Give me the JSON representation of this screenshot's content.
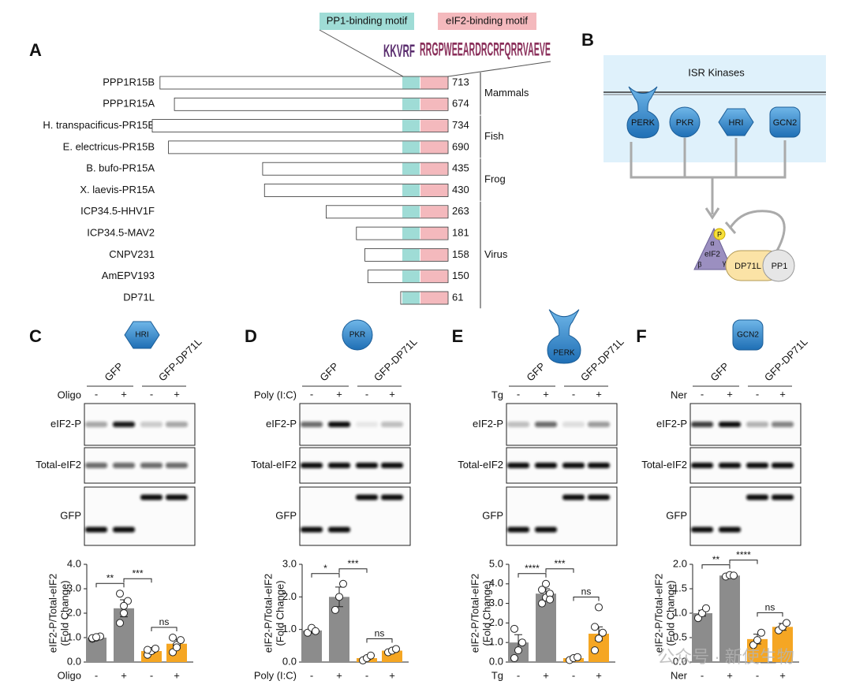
{
  "panel_labels": [
    "A",
    "B",
    "C",
    "D",
    "E",
    "F"
  ],
  "panel_a": {
    "motifs": [
      "PP1-binding motif",
      "eIF2-binding motif"
    ],
    "logos": [
      "KKVRF",
      "RRGPWEEARDRCRFQRRVAEVE"
    ],
    "groups": [
      {
        "label": "Mammals",
        "proteins": [
          {
            "name": "PPP1R15B",
            "length": 713
          },
          {
            "name": "PPP1R15A",
            "length": 674
          }
        ]
      },
      {
        "label": "Fish",
        "proteins": [
          {
            "name": "H. transpacificus-PR15B",
            "length": 734
          },
          {
            "name": "E. electricus-PR15B",
            "length": 690
          }
        ]
      },
      {
        "label": "Frog",
        "proteins": [
          {
            "name": "B. bufo-PR15A",
            "length": 435
          },
          {
            "name": "X. laevis-PR15A",
            "length": 430
          }
        ]
      },
      {
        "label": "Virus",
        "proteins": [
          {
            "name": "ICP34.5-HHV1F",
            "length": 263
          },
          {
            "name": "ICP34.5-MAV2",
            "length": 181
          },
          {
            "name": "CNPV231",
            "length": 158
          },
          {
            "name": "AmEPV193",
            "length": 150
          },
          {
            "name": "DP71L",
            "length": 61
          }
        ]
      }
    ]
  },
  "panel_b": {
    "title": "ISR Kinases",
    "kinases": [
      "PERK",
      "PKR",
      "HRI",
      "GCN2"
    ],
    "eif2": "eIF2",
    "subunits": [
      "α",
      "β",
      "γ"
    ],
    "phospho": "P",
    "partners": [
      "DP71L",
      "PP1"
    ]
  },
  "chart_data": [
    {
      "type": "bar",
      "kinase": "HRI",
      "columns": [
        "GFP",
        "GFP-DP71L"
      ],
      "treatment": "Oligo",
      "blot_rows": [
        "eIF2-P",
        "Total-eIF2",
        "GFP"
      ],
      "categories": [
        "-",
        "+",
        "-",
        "+"
      ],
      "y_label": [
        "eIF2-P/Total-eIF2",
        "(Fold Change)"
      ],
      "ylim": [
        0,
        4
      ],
      "yticks": [
        {
          "value": 0,
          "label": "0.0"
        },
        {
          "value": 1,
          "label": "1.0"
        },
        {
          "value": 2,
          "label": "2.0"
        },
        {
          "value": 3,
          "label": "3.0"
        },
        {
          "value": 4,
          "label": "4.0"
        }
      ],
      "values": [
        1.0,
        2.2,
        0.45,
        0.75
      ],
      "errors": [
        0.05,
        0.35,
        0.08,
        0.18
      ],
      "points": [
        [
          0.95,
          1.0,
          1.05,
          0.98,
          1.02
        ],
        [
          1.6,
          2.0,
          2.5,
          2.8,
          2.3
        ],
        [
          0.3,
          0.45,
          0.55,
          0.5
        ],
        [
          0.4,
          0.7,
          0.9,
          1.0,
          0.6
        ]
      ],
      "colors": [
        "#8c8c8c",
        "#8c8c8c",
        "#f5a623",
        "#f5a623"
      ],
      "annotations": [
        "**",
        "***",
        "ns"
      ]
    },
    {
      "type": "bar",
      "kinase": "PKR",
      "columns": [
        "GFP",
        "GFP-DP71L"
      ],
      "treatment": "Poly (I:C)",
      "blot_rows": [
        "eIF2-P",
        "Total-eIF2",
        "GFP"
      ],
      "categories": [
        "-",
        "+",
        "-",
        "+"
      ],
      "y_label": [
        "eIF2-P/Total-eIF2",
        "(Fold Change)"
      ],
      "ylim": [
        0,
        3
      ],
      "yticks": [
        {
          "value": 0,
          "label": "0.0"
        },
        {
          "value": 1,
          "label": "1.0"
        },
        {
          "value": 2,
          "label": "2.0"
        },
        {
          "value": 3,
          "label": "3.0"
        }
      ],
      "values": [
        0.97,
        2.0,
        0.12,
        0.35
      ],
      "errors": [
        0.08,
        0.3,
        0.05,
        0.05
      ],
      "points": [
        [
          0.9,
          1.05,
          0.95
        ],
        [
          1.6,
          2.0,
          2.4
        ],
        [
          0.05,
          0.12,
          0.2
        ],
        [
          0.3,
          0.35,
          0.4
        ]
      ],
      "colors": [
        "#8c8c8c",
        "#8c8c8c",
        "#f5a623",
        "#f5a623"
      ],
      "annotations": [
        "*",
        "***",
        "ns"
      ]
    },
    {
      "type": "bar",
      "kinase": "PERK",
      "columns": [
        "GFP",
        "GFP-DP71L"
      ],
      "treatment": "Tg",
      "blot_rows": [
        "eIF2-P",
        "Total-eIF2",
        "GFP"
      ],
      "categories": [
        "-",
        "+",
        "-",
        "+"
      ],
      "y_label": [
        "eIF2-P/Total-eIF2",
        "(Fold Change)"
      ],
      "ylim": [
        0,
        5
      ],
      "yticks": [
        {
          "value": 0,
          "label": "0.0"
        },
        {
          "value": 1,
          "label": "1.0"
        },
        {
          "value": 2,
          "label": "2.0"
        },
        {
          "value": 3,
          "label": "3.0"
        },
        {
          "value": 4,
          "label": "4.0"
        },
        {
          "value": 5,
          "label": "5.0"
        }
      ],
      "values": [
        1.0,
        3.5,
        0.2,
        1.45
      ],
      "errors": [
        0.4,
        0.25,
        0.05,
        0.35
      ],
      "points": [
        [
          0.2,
          0.6,
          1.0,
          1.7
        ],
        [
          3.0,
          3.3,
          3.5,
          3.7,
          4.0,
          3.2
        ],
        [
          0.1,
          0.2,
          0.25
        ],
        [
          0.6,
          1.2,
          1.5,
          1.8,
          2.8
        ]
      ],
      "colors": [
        "#8c8c8c",
        "#8c8c8c",
        "#f5a623",
        "#f5a623"
      ],
      "annotations": [
        "****",
        "***",
        "ns"
      ]
    },
    {
      "type": "bar",
      "kinase": "GCN2",
      "columns": [
        "GFP",
        "GFP-DP71L"
      ],
      "treatment": "Ner",
      "blot_rows": [
        "eIF2-P",
        "Total-eIF2",
        "GFP"
      ],
      "categories": [
        "-",
        "+",
        "-",
        "+"
      ],
      "y_label": [
        "eIF2-P/Total-eIF2",
        "(Fold Change)"
      ],
      "ylim": [
        0,
        2
      ],
      "yticks": [
        {
          "value": 0,
          "label": "0.0"
        },
        {
          "value": 0.5,
          "label": "0.5"
        },
        {
          "value": 1,
          "label": "1.0"
        },
        {
          "value": 1.5,
          "label": "1.5"
        },
        {
          "value": 2,
          "label": "2.0"
        }
      ],
      "values": [
        1.0,
        1.77,
        0.47,
        0.72
      ],
      "errors": [
        0.06,
        0.02,
        0.1,
        0.07
      ],
      "points": [
        [
          0.9,
          1.0,
          1.1
        ],
        [
          1.75,
          1.78,
          1.77
        ],
        [
          0.35,
          0.45,
          0.6
        ],
        [
          0.65,
          0.72,
          0.8
        ]
      ],
      "colors": [
        "#8c8c8c",
        "#8c8c8c",
        "#f5a623",
        "#f5a623"
      ],
      "annotations": [
        "**",
        "****",
        "ns"
      ]
    }
  ],
  "watermark": "公众号 · 新使生物"
}
